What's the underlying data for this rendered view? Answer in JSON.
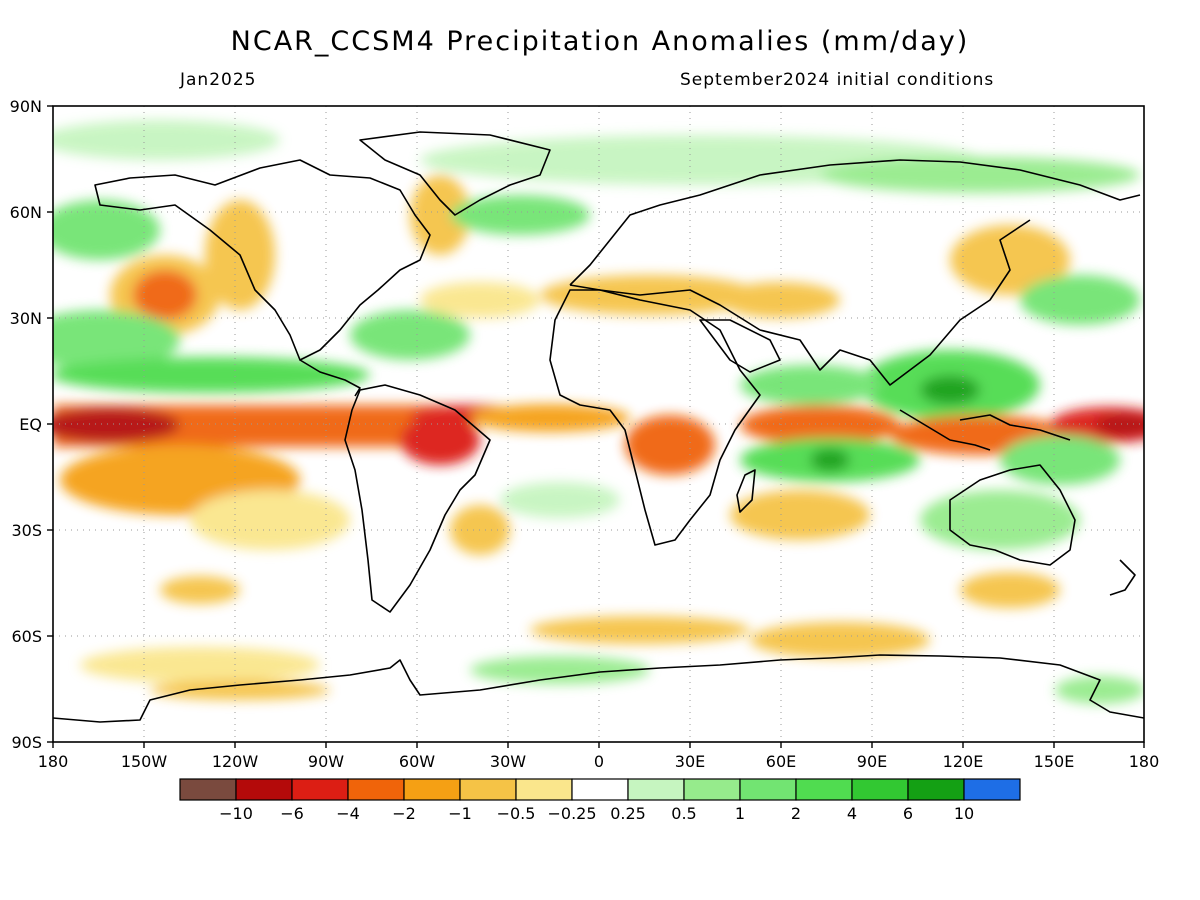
{
  "header": {
    "title": "NCAR_CCSM4 Precipitation Anomalies (mm/day)",
    "valid_month": "Jan2025",
    "init_conditions": "September2024 initial conditions"
  },
  "axes": {
    "lat_labels": [
      "90N",
      "60N",
      "30N",
      "EQ",
      "30S",
      "60S",
      "90S"
    ],
    "lon_labels": [
      "180",
      "150W",
      "120W",
      "90W",
      "60W",
      "30W",
      "0",
      "30E",
      "60E",
      "90E",
      "120E",
      "150E",
      "180"
    ]
  },
  "legend": {
    "colors": [
      "#7a4a3e",
      "#b40a0a",
      "#dc1e14",
      "#f0640a",
      "#f5a014",
      "#f5c346",
      "#fae68c",
      "#ffffff",
      "#c6f5c0",
      "#96eb8c",
      "#72e472",
      "#50dc50",
      "#32c832",
      "#14a014",
      "#1e6ee6"
    ],
    "labels": [
      "−10",
      "−6",
      "−4",
      "−2",
      "−1",
      "−0.5",
      "−0.25",
      "0.25",
      "0.5",
      "1",
      "2",
      "4",
      "6",
      "10"
    ]
  },
  "colors": {
    "dry_strong": "#b40a0a",
    "dry": "#f0640a",
    "dry_light": "#fae68c",
    "wet_light": "#c6f5c0",
    "wet": "#50dc50",
    "wet_strong": "#14a014",
    "coast": "#000000",
    "grid": "#999999"
  }
}
